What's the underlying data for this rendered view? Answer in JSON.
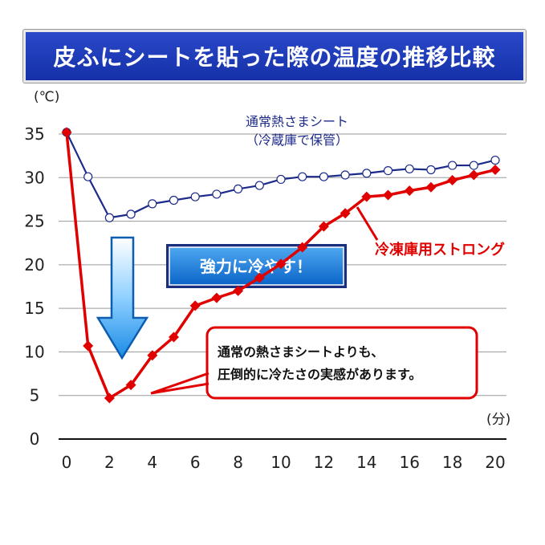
{
  "title": "皮ふにシートを貼った際の温度の推移比較",
  "chart_data": {
    "type": "line",
    "ylabel": "(℃)",
    "xlabel": "(分)",
    "xlim": [
      0,
      20
    ],
    "ylim": [
      0,
      35
    ],
    "x_ticks": [
      0,
      2,
      4,
      6,
      8,
      10,
      12,
      14,
      16,
      18,
      20
    ],
    "y_ticks": [
      0,
      5,
      10,
      15,
      20,
      25,
      30,
      35
    ],
    "grid": "horizontal",
    "series": [
      {
        "name": "通常熱さまシート（冷蔵庫で保管）",
        "name_lines": [
          "通常熱さまシート",
          "（冷蔵庫で保管）"
        ],
        "color": "#1c2a8a",
        "marker": "circle",
        "x": [
          0,
          1,
          2,
          3,
          4,
          5,
          6,
          7,
          8,
          9,
          10,
          11,
          12,
          13,
          14,
          15,
          16,
          17,
          18,
          19,
          20
        ],
        "values": [
          35.2,
          30.1,
          25.4,
          25.8,
          27.0,
          27.4,
          27.8,
          28.1,
          28.7,
          29.1,
          29.8,
          30.1,
          30.1,
          30.3,
          30.5,
          30.8,
          31.0,
          30.9,
          31.4,
          31.4,
          32.0
        ]
      },
      {
        "name": "冷凍庫用ストロング",
        "color": "#e00000",
        "marker": "diamond",
        "x": [
          0,
          1,
          2,
          3,
          4,
          5,
          6,
          7,
          8,
          9,
          10,
          11,
          12,
          13,
          14,
          15,
          16,
          17,
          18,
          19,
          20
        ],
        "values": [
          35.2,
          10.7,
          4.7,
          6.2,
          9.6,
          11.7,
          15.3,
          16.2,
          17.0,
          18.5,
          20.1,
          22.0,
          24.4,
          25.9,
          27.8,
          28.0,
          28.5,
          28.9,
          29.7,
          30.3,
          30.9
        ]
      }
    ],
    "annotations": {
      "arrow_label": "強力に冷やす！",
      "callout_lines": [
        "通常の熱さまシートよりも、",
        "圧倒的に冷たさの実感があります。"
      ]
    }
  }
}
